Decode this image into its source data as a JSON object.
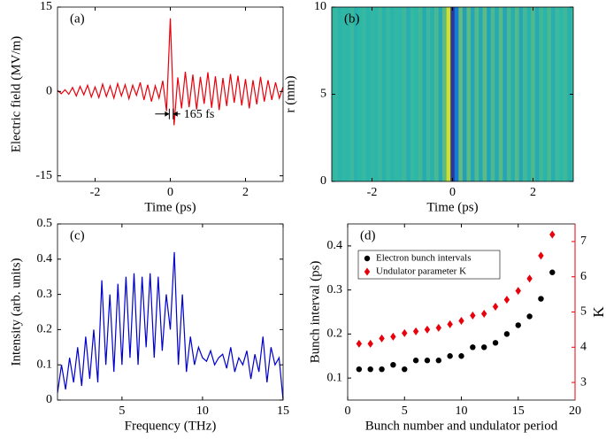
{
  "chart_data": [
    {
      "type": "line",
      "label": "(a)",
      "xlabel": "Time (ps)",
      "ylabel": "Electric field (MV/m)",
      "color": "#e8000b",
      "annotation": "165 fs",
      "xlim": [
        -3,
        3
      ],
      "xticks": [
        -2,
        0,
        2
      ],
      "ylim": [
        -16,
        15
      ],
      "yticks": [
        -15,
        0,
        15
      ],
      "x": [
        -3,
        -2.9,
        -2.8,
        -2.7,
        -2.6,
        -2.5,
        -2.4,
        -2.3,
        -2.2,
        -2.1,
        -2,
        -1.9,
        -1.8,
        -1.7,
        -1.6,
        -1.5,
        -1.4,
        -1.3,
        -1.2,
        -1.1,
        -1,
        -0.9,
        -0.8,
        -0.7,
        -0.6,
        -0.5,
        -0.4,
        -0.3,
        -0.2,
        -0.1,
        0,
        0.1,
        0.2,
        0.3,
        0.4,
        0.5,
        0.6,
        0.7,
        0.8,
        0.9,
        1,
        1.1,
        1.2,
        1.3,
        1.4,
        1.5,
        1.6,
        1.7,
        1.8,
        1.9,
        2,
        2.1,
        2.2,
        2.3,
        2.4,
        2.5,
        2.6,
        2.7,
        2.8,
        2.9,
        3
      ],
      "values": [
        0.2,
        -0.4,
        0.3,
        -0.5,
        0.7,
        -0.8,
        0.9,
        -0.6,
        1.1,
        -1.0,
        0.8,
        -1.1,
        1.3,
        -0.9,
        1.0,
        -1.2,
        1.4,
        -0.8,
        1.2,
        -1.3,
        1.1,
        -0.7,
        1.6,
        -1.5,
        1.2,
        -1.8,
        1.0,
        -1.2,
        1.9,
        -3.5,
        13,
        -6,
        2.5,
        -3,
        3.5,
        -2.8,
        3.0,
        -3.2,
        2.6,
        -2.2,
        3.4,
        -2.9,
        2.7,
        -3.3,
        2.4,
        -2.6,
        3.1,
        -2.0,
        2.8,
        -2.5,
        2.2,
        -3.0,
        2.0,
        -2.3,
        2.6,
        -1.8,
        2.0,
        -1.5,
        1.6,
        -1.2,
        0.8
      ]
    },
    {
      "type": "heatmap",
      "label": "(b)",
      "xlabel": "Time (ps)",
      "ylabel": "r (mm)",
      "colormap": [
        "#352a87",
        "#0d6ee0",
        "#2cb7a8",
        "#a5be4c",
        "#f9fb0e"
      ],
      "xlim": [
        -3,
        3
      ],
      "xticks": [
        -2,
        0,
        2
      ],
      "ylim": [
        0,
        10
      ],
      "yticks": [
        0,
        5,
        10
      ],
      "x": [
        -3,
        -2.9,
        -2.8,
        -2.7,
        -2.6,
        -2.5,
        -2.4,
        -2.3,
        -2.2,
        -2.1,
        -2,
        -1.9,
        -1.8,
        -1.7,
        -1.6,
        -1.5,
        -1.4,
        -1.3,
        -1.2,
        -1.1,
        -1,
        -0.9,
        -0.8,
        -0.7,
        -0.6,
        -0.5,
        -0.4,
        -0.3,
        -0.2,
        -0.1,
        0,
        0.1,
        0.2,
        0.3,
        0.4,
        0.5,
        0.6,
        0.7,
        0.8,
        0.9,
        1,
        1.1,
        1.2,
        1.3,
        1.4,
        1.5,
        1.6,
        1.7,
        1.8,
        1.9,
        2,
        2.1,
        2.2,
        2.3,
        2.4,
        2.5,
        2.6,
        2.7,
        2.8,
        2.9,
        3
      ],
      "values": [
        0.5,
        0.52,
        0.49,
        0.51,
        0.5,
        0.53,
        0.48,
        0.5,
        0.52,
        0.49,
        0.51,
        0.5,
        0.53,
        0.48,
        0.52,
        0.49,
        0.51,
        0.5,
        0.54,
        0.47,
        0.52,
        0.5,
        0.55,
        0.46,
        0.53,
        0.48,
        0.56,
        0.45,
        0.6,
        0.88,
        0.05,
        0.3,
        0.62,
        0.42,
        0.6,
        0.44,
        0.58,
        0.45,
        0.6,
        0.43,
        0.57,
        0.46,
        0.59,
        0.44,
        0.56,
        0.47,
        0.58,
        0.45,
        0.55,
        0.48,
        0.57,
        0.46,
        0.54,
        0.49,
        0.56,
        0.47,
        0.53,
        0.5,
        0.54,
        0.48,
        0.52
      ]
    },
    {
      "type": "line",
      "label": "(c)",
      "xlabel": "Frequency (THz)",
      "ylabel": "Intensity (arb. units)",
      "color": "#0000cc",
      "xlim": [
        1,
        15
      ],
      "xticks": [
        5,
        10,
        15
      ],
      "ylim": [
        0,
        0.5
      ],
      "yticks": [
        0,
        0.1,
        0.2,
        0.3,
        0.4,
        0.5
      ],
      "x": [
        1,
        1.25,
        1.5,
        1.75,
        2,
        2.25,
        2.5,
        2.75,
        3,
        3.25,
        3.5,
        3.75,
        4,
        4.25,
        4.5,
        4.75,
        5,
        5.25,
        5.5,
        5.75,
        6,
        6.25,
        6.5,
        6.75,
        7,
        7.25,
        7.5,
        7.75,
        8,
        8.25,
        8.5,
        8.75,
        9,
        9.25,
        9.5,
        9.75,
        10,
        10.25,
        10.5,
        10.75,
        11,
        11.25,
        11.5,
        11.75,
        12,
        12.25,
        12.5,
        12.75,
        13,
        13.25,
        13.5,
        13.75,
        14,
        14.25,
        14.5,
        14.75,
        15
      ],
      "values": [
        0.02,
        0.1,
        0.03,
        0.12,
        0.05,
        0.15,
        0.04,
        0.18,
        0.06,
        0.2,
        0.05,
        0.34,
        0.1,
        0.3,
        0.08,
        0.33,
        0.1,
        0.35,
        0.12,
        0.36,
        0.1,
        0.35,
        0.15,
        0.36,
        0.12,
        0.35,
        0.14,
        0.3,
        0.2,
        0.42,
        0.1,
        0.3,
        0.08,
        0.18,
        0.1,
        0.15,
        0.12,
        0.11,
        0.14,
        0.1,
        0.12,
        0.13,
        0.09,
        0.15,
        0.08,
        0.12,
        0.1,
        0.14,
        0.06,
        0.13,
        0.08,
        0.18,
        0.05,
        0.15,
        0.1,
        0.12,
        0.0
      ]
    },
    {
      "type": "scatter",
      "label": "(d)",
      "xlabel": "Bunch number and undulator period",
      "ylabel": "Bunch interval (ps)",
      "y2label": "K",
      "y2color": "#e8000b",
      "xlim": [
        0,
        20
      ],
      "xticks": [
        0,
        5,
        10,
        15,
        20
      ],
      "ylim": [
        0.05,
        0.45
      ],
      "yticks": [
        0.1,
        0.2,
        0.3,
        0.4
      ],
      "y2lim": [
        2.5,
        7.5
      ],
      "y2ticks": [
        3,
        4,
        5,
        6,
        7
      ],
      "x": [
        1,
        2,
        3,
        4,
        5,
        6,
        7,
        8,
        9,
        10,
        11,
        12,
        13,
        14,
        15,
        16,
        17,
        18
      ],
      "series": [
        {
          "name": "Electron bunch intervals",
          "color": "#000000",
          "marker": "circle",
          "values": [
            0.12,
            0.12,
            0.12,
            0.13,
            0.12,
            0.14,
            0.14,
            0.14,
            0.15,
            0.15,
            0.17,
            0.17,
            0.18,
            0.2,
            0.22,
            0.24,
            0.28,
            0.34
          ]
        },
        {
          "name": "Undulator parameter K",
          "color": "#e8000b",
          "marker": "diamond",
          "axis": "y2",
          "values": [
            4.1,
            4.1,
            4.25,
            4.3,
            4.4,
            4.45,
            4.5,
            4.55,
            4.65,
            4.75,
            4.9,
            4.95,
            5.15,
            5.35,
            5.6,
            5.95,
            6.6,
            7.2
          ]
        }
      ]
    }
  ]
}
